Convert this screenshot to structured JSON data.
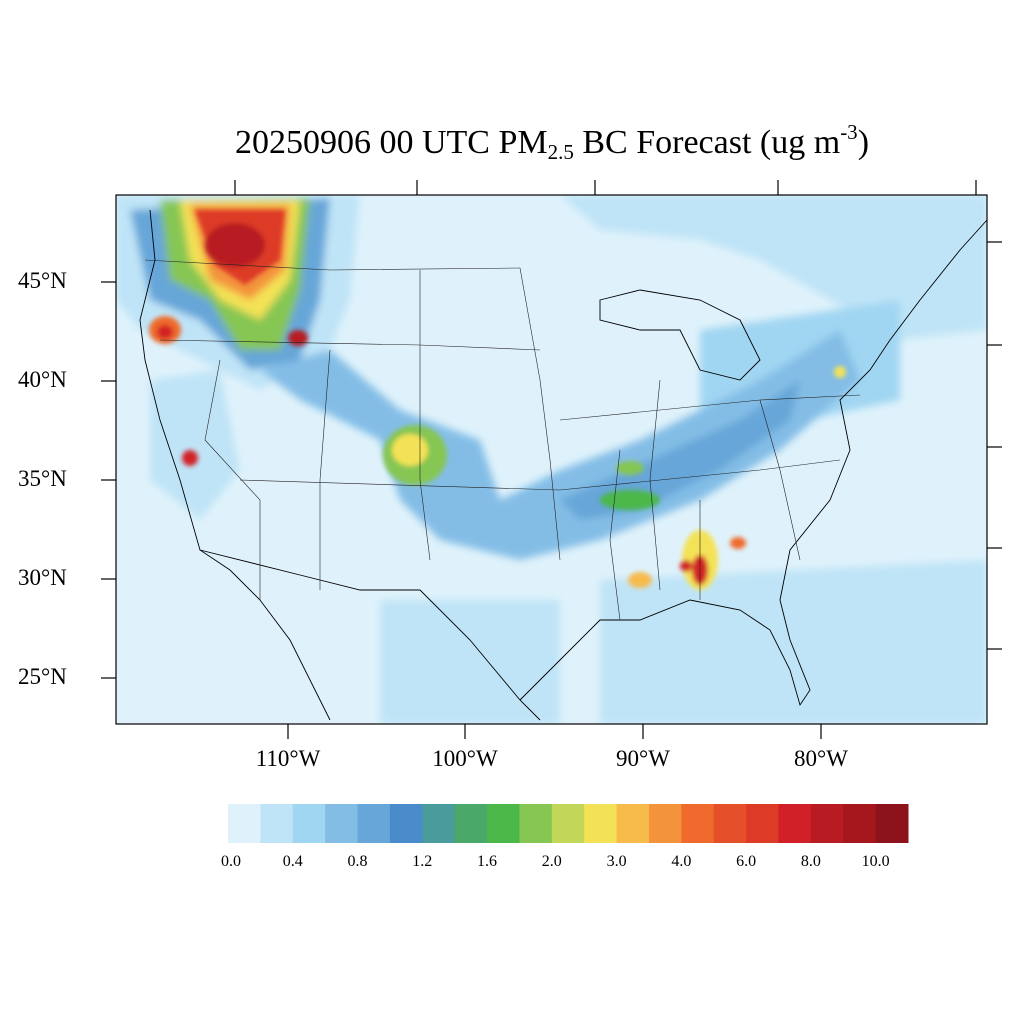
{
  "title": {
    "main": "20250906 00 UTC PM",
    "sub": "2.5",
    "rest": " BC Forecast (ug m",
    "sup": "-3",
    "end": ")"
  },
  "map": {
    "lat_labels": [
      "45°N",
      "40°N",
      "35°N",
      "30°N",
      "25°N"
    ],
    "lon_labels": [
      "110°W",
      "100°W",
      "90°W",
      "80°W"
    ],
    "background_color": "#dff2fb"
  },
  "colorbar": {
    "labels": [
      "0.0",
      "0.4",
      "0.8",
      "1.2",
      "1.6",
      "2.0",
      "3.0",
      "4.0",
      "6.0",
      "8.0",
      "10.0"
    ],
    "colors": [
      "#dff2fb",
      "#bfe4f7",
      "#a0d6f2",
      "#83bde6",
      "#66a6d8",
      "#4a8bcb",
      "#4a9b9b",
      "#4aa868",
      "#4cb84a",
      "#86c652",
      "#c2d65a",
      "#f4e256",
      "#f7bb4b",
      "#f3933c",
      "#ef6a2c",
      "#e5502a",
      "#dd3b25",
      "#d12027",
      "#b81b22",
      "#a5171c",
      "#8c131b"
    ]
  }
}
